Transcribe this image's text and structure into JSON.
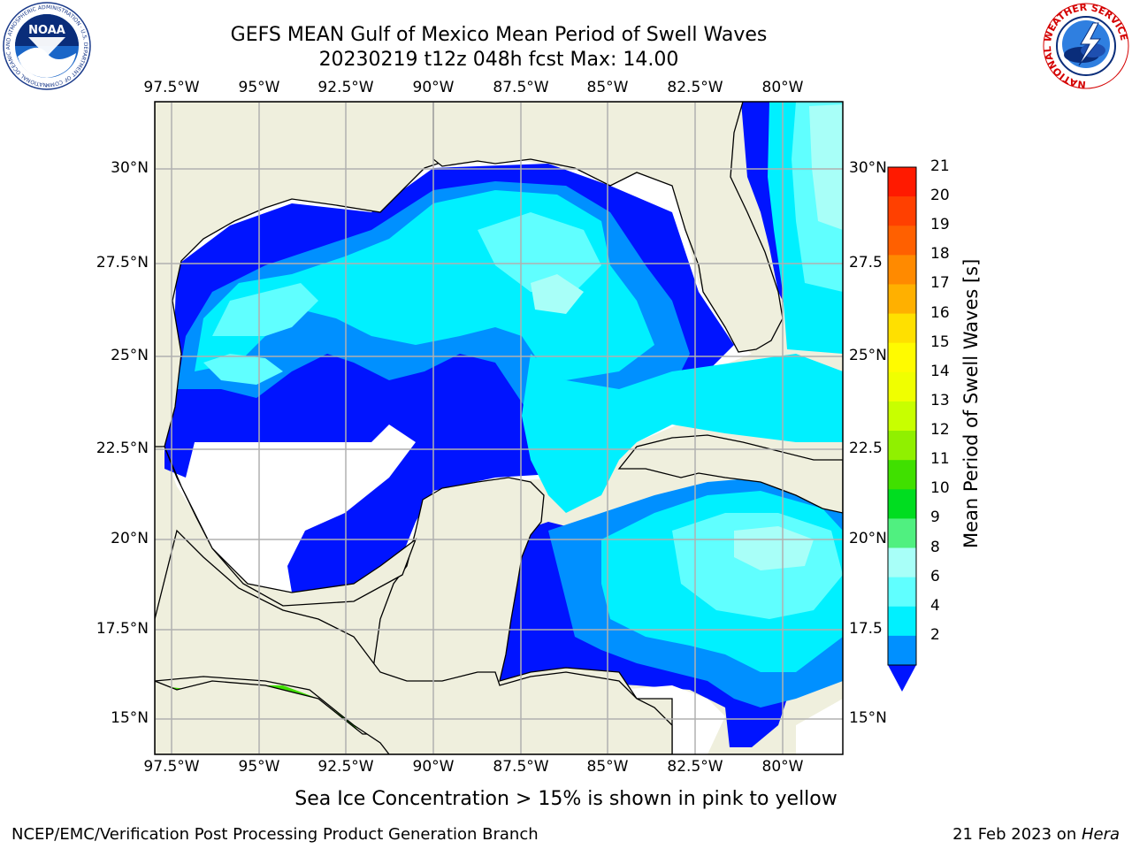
{
  "header": {
    "title_line1": "GEFS MEAN Gulf of Mexico Mean Period of Swell Waves",
    "title_line2": "20230219 t12z 048h fcst   Max: 14.00"
  },
  "logos": {
    "left": {
      "name": "noaa-logo",
      "text": "NOAA",
      "ring_text": "NATIONAL OCEANIC AND ATMOSPHERIC ADMINISTRATION · U.S. DEPARTMENT OF COMMERCE"
    },
    "right": {
      "name": "nws-logo",
      "ring_text": "NATIONAL WEATHER SERVICE"
    }
  },
  "map": {
    "lon_ticks": [
      "97.5°W",
      "95°W",
      "92.5°W",
      "90°W",
      "87.5°W",
      "85°W",
      "82.5°W",
      "80°W"
    ],
    "lat_ticks_left": [
      "30°N",
      "27.5°N",
      "25°N",
      "22.5°N",
      "20°N",
      "17.5°N",
      "15°N"
    ],
    "lat_ticks_right": [
      "30°N",
      "27.5",
      "25°N",
      "22.5",
      "20°N",
      "17.5",
      "15°N"
    ],
    "colors": {
      "land": "#efefdd",
      "coast": "#000000",
      "grid": "#b0b0b0"
    }
  },
  "colorbar": {
    "title": "Mean Period of Swell Waves [s]",
    "labels": [
      "21",
      "20",
      "19",
      "18",
      "17",
      "16",
      "15",
      "14",
      "13",
      "12",
      "11",
      "10",
      "9",
      "8",
      "6",
      "4",
      "2"
    ],
    "colors": [
      "#ff1a00",
      "#ff4000",
      "#ff6000",
      "#ff8a00",
      "#ffb000",
      "#ffe000",
      "#fffb00",
      "#f0ff00",
      "#c8ff00",
      "#90f000",
      "#40e000",
      "#00dd20",
      "#50f080",
      "#a8fff8",
      "#60ffff",
      "#00f0ff",
      "#0090ff"
    ],
    "extend_color": "#0014ff"
  },
  "footer": {
    "caption": "Sea Ice Concentration > 15% is shown in pink to yellow",
    "left": "NCEP/EMC/Verification Post Processing Product Generation Branch",
    "right_prefix": "21 Feb 2023 on ",
    "right_host": "Hera"
  }
}
